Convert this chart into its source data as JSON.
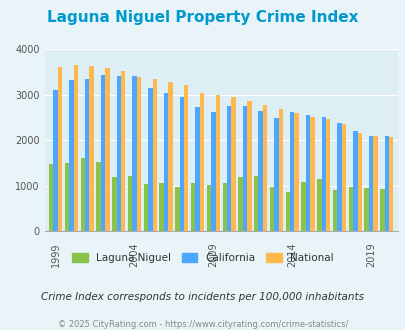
{
  "title": "Laguna Niguel Property Crime Index",
  "title_color": "#0099cc",
  "subtitle": "Crime Index corresponds to incidents per 100,000 inhabitants",
  "footer": "© 2025 CityRating.com - https://www.cityrating.com/crime-statistics/",
  "years": [
    1999,
    2000,
    2001,
    2002,
    2003,
    2004,
    2005,
    2006,
    2007,
    2008,
    2009,
    2010,
    2011,
    2012,
    2013,
    2014,
    2015,
    2016,
    2017,
    2018,
    2019,
    2020
  ],
  "laguna_niguel": [
    1480,
    1500,
    1600,
    1530,
    1200,
    1220,
    1040,
    1050,
    980,
    1050,
    1020,
    1060,
    1200,
    1210,
    980,
    870,
    1070,
    1140,
    900,
    980,
    940,
    920
  ],
  "california": [
    3110,
    3320,
    3340,
    3430,
    3420,
    3420,
    3160,
    3050,
    2950,
    2740,
    2630,
    2760,
    2760,
    2640,
    2490,
    2630,
    2560,
    2510,
    2390,
    2200,
    2100,
    2100
  ],
  "national": [
    3620,
    3650,
    3630,
    3600,
    3520,
    3400,
    3350,
    3280,
    3220,
    3050,
    2990,
    2960,
    2870,
    2770,
    2690,
    2590,
    2510,
    2470,
    2360,
    2170,
    2100,
    2080
  ],
  "bar_colors": {
    "laguna_niguel": "#8bc34a",
    "california": "#4da6ff",
    "national": "#ffb84d"
  },
  "bg_color": "#e8f4f8",
  "plot_bg_color": "#ddeef5",
  "ylim": [
    0,
    4000
  ],
  "yticks": [
    0,
    1000,
    2000,
    3000,
    4000
  ],
  "xlabel_years": [
    1999,
    2004,
    2009,
    2014,
    2019
  ],
  "legend_labels": [
    "Laguna Niguel",
    "California",
    "National"
  ],
  "legend_colors": [
    "#8bc34a",
    "#4da6ff",
    "#ffb84d"
  ]
}
